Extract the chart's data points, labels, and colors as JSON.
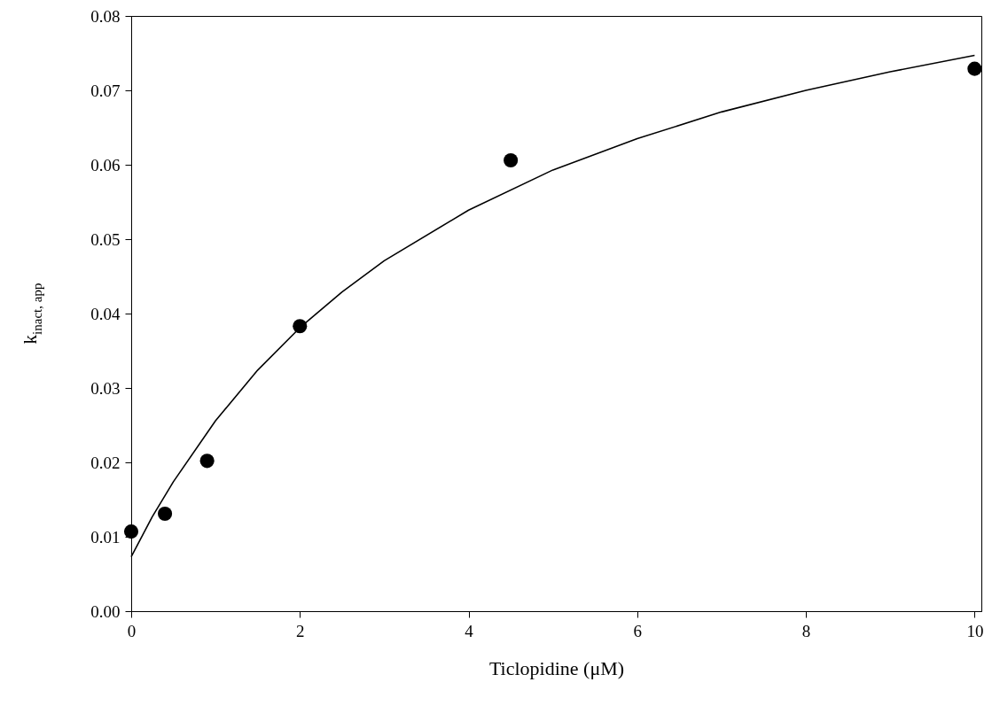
{
  "chart_data": {
    "type": "scatter",
    "xlabel": "Ticlopidine (μM)",
    "ylabel": "k$_{inact, app}$",
    "xlim": [
      0,
      10.08
    ],
    "xticks": [
      0,
      2,
      4,
      6,
      8,
      10
    ],
    "ylim": [
      0,
      0.08
    ],
    "yticks": [
      {
        "value": 0,
        "label": "0.00"
      },
      0.01,
      0.02,
      0.03,
      0.04,
      0.05,
      0.06,
      0.07,
      0.08
    ],
    "series": [
      {
        "type": "line",
        "color": "#000000",
        "x": [
          0,
          0.25,
          0.5,
          1,
          1.5,
          2,
          2.5,
          3,
          4,
          5,
          6,
          7,
          8,
          9,
          10
        ],
        "values": [
          0.0073,
          0.0127,
          0.0174,
          0.0256,
          0.0324,
          0.0381,
          0.0429,
          0.0471,
          0.0539,
          0.0593,
          0.0635,
          0.0671,
          0.07,
          0.0725,
          0.0747
        ]
      },
      {
        "marker": "circle",
        "color": "#000000",
        "x": [
          0,
          0.4,
          0.9,
          2,
          4.5,
          10
        ],
        "values": [
          0.0107,
          0.0131,
          0.0202,
          0.0383,
          0.0606,
          0.0729
        ]
      }
    ]
  }
}
